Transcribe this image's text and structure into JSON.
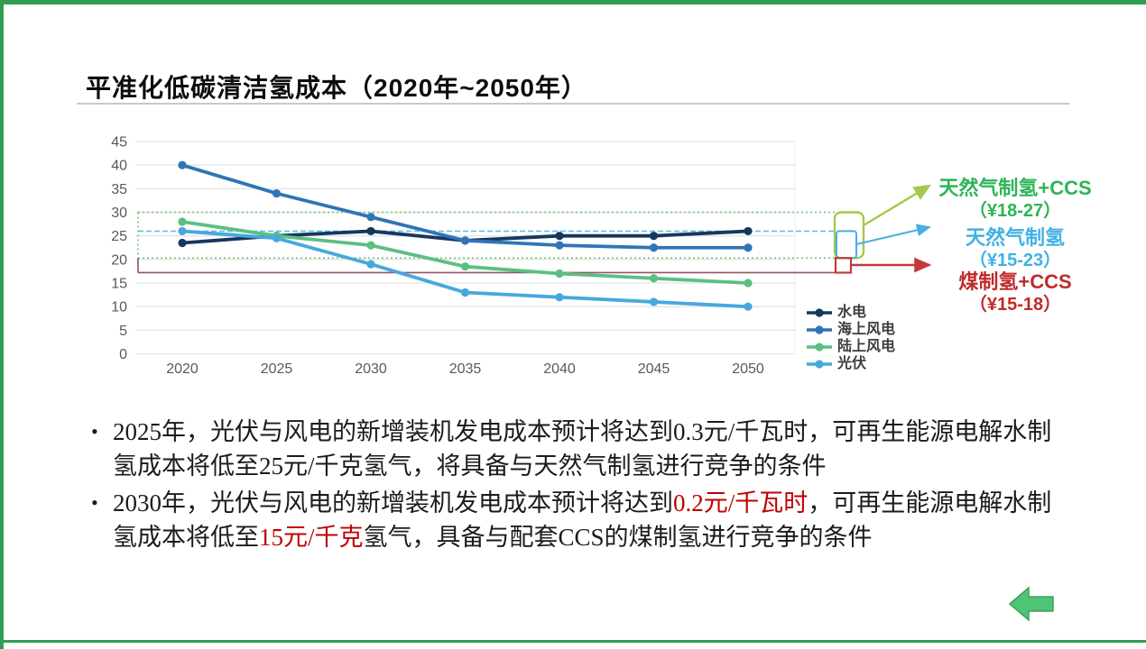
{
  "slide": {
    "title": "平准化低碳清洁氢成本（2020年~2050年）",
    "frame_color": "#2f9e52",
    "arrow_fill": "#4fc474",
    "arrow_stroke": "#3ea05d"
  },
  "chart_data": {
    "type": "line",
    "title": "",
    "xlabel": "",
    "ylabel": "",
    "x": [
      2020,
      2025,
      2030,
      2035,
      2040,
      2045,
      2050
    ],
    "ylim": [
      0,
      45
    ],
    "ytick_step": 5,
    "grid": true,
    "legend_position": "right-bottom",
    "series": [
      {
        "name": "水电",
        "color": "#17375e",
        "values": [
          23.5,
          25,
          26,
          24,
          25,
          25,
          26
        ]
      },
      {
        "name": "海上风电",
        "color": "#2e75b6",
        "values": [
          40,
          34,
          29,
          24,
          23,
          22.5,
          22.5
        ]
      },
      {
        "name": "陆上风电",
        "color": "#5cbf82",
        "values": [
          28,
          25,
          23,
          18.5,
          17,
          16,
          15
        ]
      },
      {
        "name": "光伏",
        "color": "#47a8dc",
        "values": [
          26,
          24.5,
          19,
          13,
          12,
          11,
          10
        ]
      }
    ],
    "reference_bands": [
      {
        "label": "天然气制氢+CCS",
        "range_label": "（¥18-27）",
        "draw_range": [
          20.3,
          30
        ],
        "line_color": "#7cc87c",
        "bracket_color": "#a3c94f",
        "text_color": "#2db457",
        "line_style": "dotted"
      },
      {
        "label": "天然气制氢",
        "range_label": "（¥15-23）",
        "draw_range": [
          20.3,
          26
        ],
        "line_color": "#5ec1ea",
        "bracket_color": "#48b0e0",
        "text_color": "#41b1e4",
        "line_style": "dashed"
      },
      {
        "label": "煤制氢+CCS",
        "range_label": "（¥15-18）",
        "draw_range": [
          17.2,
          20.3
        ],
        "line_color": "#95525e",
        "bracket_color": "#c23a35",
        "text_color": "#c02a2a",
        "line_style": "solid"
      }
    ]
  },
  "bullets": [
    {
      "segments": [
        {
          "text": "2025年，光伏与风电的新增装机发电成本预计将达到0.3元/千瓦时，可再生能源电解水制氢成本将低至25元/千克氢气，将具备与天然气制氢进行竞争的条件",
          "color": "#1b1b1b"
        }
      ]
    },
    {
      "segments": [
        {
          "text": "2030年，光伏与风电的新增装机发电成本预计将达到",
          "color": "#1b1b1b"
        },
        {
          "text": "0.2元/千瓦时",
          "color": "#c00000"
        },
        {
          "text": "，可再生能源电解水制氢成本将低至",
          "color": "#1b1b1b"
        },
        {
          "text": "15元/千克",
          "color": "#c00000"
        },
        {
          "text": "氢气，具备与配套CCS的煤制氢进行竞争的条件",
          "color": "#1b1b1b"
        }
      ]
    }
  ]
}
